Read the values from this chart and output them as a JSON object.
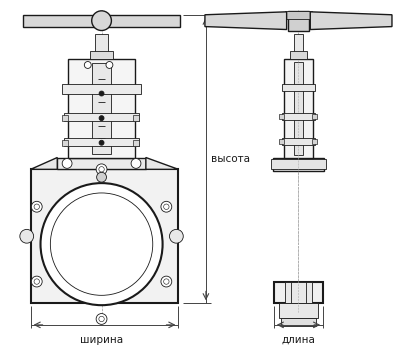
{
  "bg_color": "#ffffff",
  "line_color": "#1a1a1a",
  "dim_line_color": "#444444",
  "label_color": "#1a1a1a",
  "fig_width": 4.0,
  "fig_height": 3.46,
  "dpi": 100,
  "labels": {
    "width": "ширина",
    "length": "длина",
    "height": "высота"
  }
}
